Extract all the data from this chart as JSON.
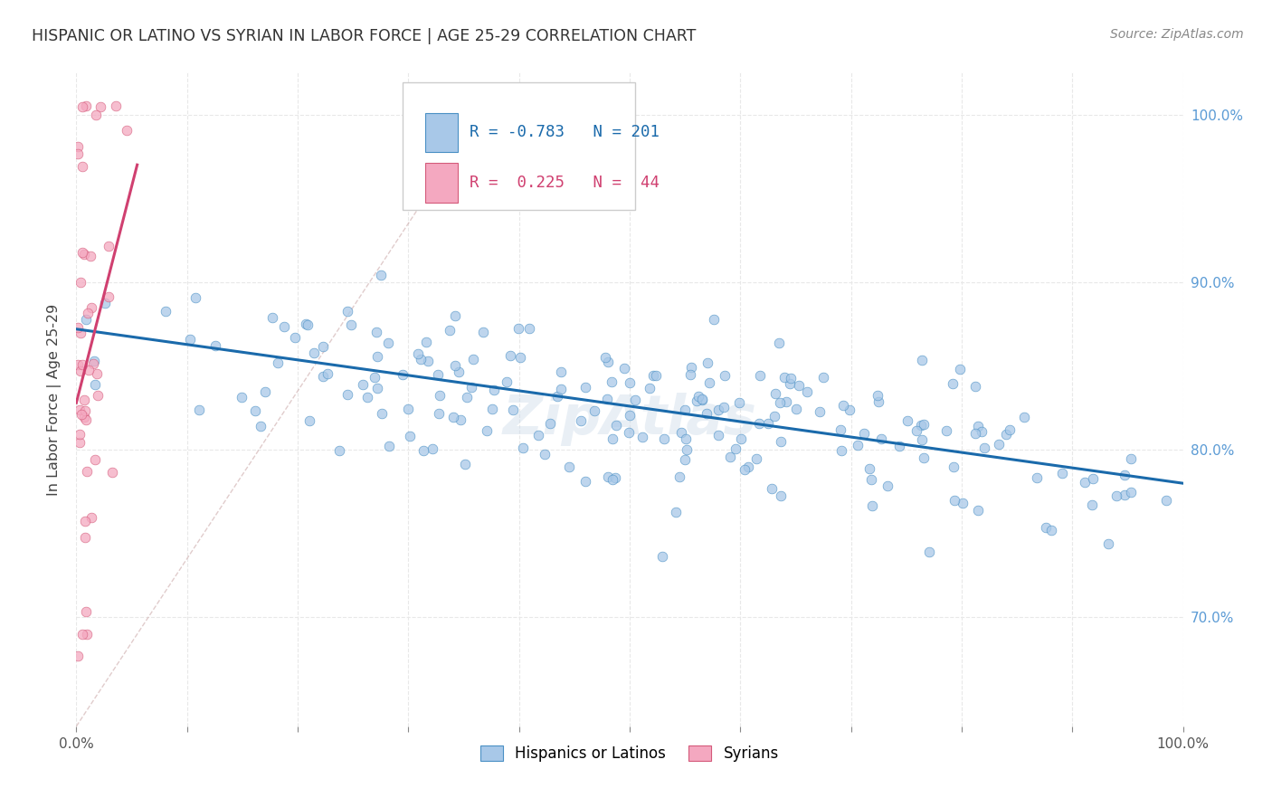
{
  "title": "HISPANIC OR LATINO VS SYRIAN IN LABOR FORCE | AGE 25-29 CORRELATION CHART",
  "source": "Source: ZipAtlas.com",
  "ylabel": "In Labor Force | Age 25-29",
  "xlim": [
    0.0,
    1.0
  ],
  "ylim": [
    0.635,
    1.025
  ],
  "x_ticks": [
    0.0,
    0.1,
    0.2,
    0.3,
    0.4,
    0.5,
    0.6,
    0.7,
    0.8,
    0.9,
    1.0
  ],
  "x_tick_labels": [
    "0.0%",
    "",
    "",
    "",
    "",
    "",
    "",
    "",
    "",
    "",
    "100.0%"
  ],
  "y_tick_labels": [
    "70.0%",
    "80.0%",
    "90.0%",
    "100.0%"
  ],
  "y_ticks": [
    0.7,
    0.8,
    0.9,
    1.0
  ],
  "blue_R": -0.783,
  "blue_N": 201,
  "pink_R": 0.225,
  "pink_N": 44,
  "blue_color": "#a8c8e8",
  "pink_color": "#f4a8c0",
  "blue_edge_color": "#4a90c4",
  "pink_edge_color": "#d45a7a",
  "blue_line_color": "#1a6aab",
  "pink_line_color": "#d04070",
  "legend_blue_label": "Hispanics or Latinos",
  "legend_pink_label": "Syrians",
  "blue_trend_x": [
    0.0,
    1.0
  ],
  "blue_trend_y": [
    0.872,
    0.78
  ],
  "pink_trend_x": [
    0.0,
    0.055
  ],
  "pink_trend_y": [
    0.828,
    0.97
  ],
  "ref_line_x": [
    0.0,
    0.38
  ],
  "ref_line_y": [
    0.635,
    1.015
  ],
  "watermark": "ZipAtlas",
  "bg_color": "#ffffff",
  "grid_color": "#e8e8e8",
  "blue_seed": 42,
  "pink_seed": 7
}
